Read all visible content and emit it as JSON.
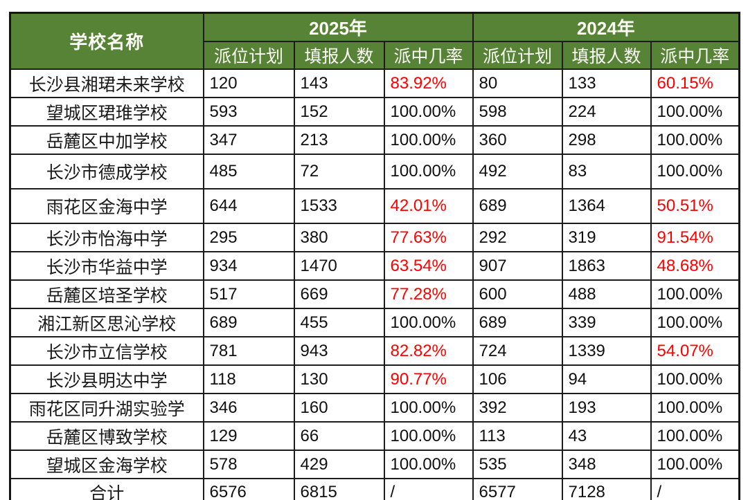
{
  "colors": {
    "header_green": "#578336",
    "rate_red": "#fe0000",
    "grid_line": "#1c1c1c",
    "body_text": "#101010"
  },
  "chart_data": {
    "type": "table",
    "header": {
      "school_column": "学校名称",
      "year_groups": [
        "2025年",
        "2024年"
      ],
      "sub_columns": [
        "派位计划",
        "填报人数",
        "派中几率"
      ]
    },
    "rows": [
      {
        "school": "长沙县湘珺未来学校",
        "y2025": {
          "plan": "120",
          "applicants": "143",
          "rate": "83.92%"
        },
        "y2024": {
          "plan": "80",
          "applicants": "133",
          "rate": "60.15%"
        }
      },
      {
        "school": "望城区珺琟学校",
        "y2025": {
          "plan": "593",
          "applicants": "152",
          "rate": "100.00%"
        },
        "y2024": {
          "plan": "598",
          "applicants": "224",
          "rate": "100.00%"
        }
      },
      {
        "school": "岳麓区中加学校",
        "y2025": {
          "plan": "347",
          "applicants": "213",
          "rate": "100.00%"
        },
        "y2024": {
          "plan": "360",
          "applicants": "298",
          "rate": "100.00%"
        }
      },
      {
        "school": "长沙市德成学校",
        "y2025": {
          "plan": "485",
          "applicants": "72",
          "rate": "100.00%"
        },
        "y2024": {
          "plan": "492",
          "applicants": "83",
          "rate": "100.00%"
        }
      },
      {
        "school": "雨花区金海中学",
        "y2025": {
          "plan": "644",
          "applicants": "1533",
          "rate": "42.01%"
        },
        "y2024": {
          "plan": "689",
          "applicants": "1364",
          "rate": "50.51%"
        }
      },
      {
        "school": "长沙市怡海中学",
        "y2025": {
          "plan": "295",
          "applicants": "380",
          "rate": "77.63%"
        },
        "y2024": {
          "plan": "292",
          "applicants": "319",
          "rate": "91.54%"
        }
      },
      {
        "school": "长沙市华益中学",
        "y2025": {
          "plan": "934",
          "applicants": "1470",
          "rate": "63.54%"
        },
        "y2024": {
          "plan": "907",
          "applicants": "1863",
          "rate": "48.68%"
        }
      },
      {
        "school": "岳麓区培圣学校",
        "y2025": {
          "plan": "517",
          "applicants": "669",
          "rate": "77.28%"
        },
        "y2024": {
          "plan": "600",
          "applicants": "488",
          "rate": "100.00%"
        }
      },
      {
        "school": "湘江新区思沁学校",
        "y2025": {
          "plan": "689",
          "applicants": "455",
          "rate": "100.00%"
        },
        "y2024": {
          "plan": "689",
          "applicants": "339",
          "rate": "100.00%"
        }
      },
      {
        "school": "长沙市立信学校",
        "y2025": {
          "plan": "781",
          "applicants": "943",
          "rate": "82.82%"
        },
        "y2024": {
          "plan": "724",
          "applicants": "1339",
          "rate": "54.07%"
        }
      },
      {
        "school": "长沙县明达中学",
        "y2025": {
          "plan": "118",
          "applicants": "130",
          "rate": "90.77%"
        },
        "y2024": {
          "plan": "106",
          "applicants": "94",
          "rate": "100.00%"
        }
      },
      {
        "school": "雨花区同升湖实验学",
        "y2025": {
          "plan": "346",
          "applicants": "160",
          "rate": "100.00%"
        },
        "y2024": {
          "plan": "392",
          "applicants": "193",
          "rate": "100.00%"
        }
      },
      {
        "school": "岳麓区博致学校",
        "y2025": {
          "plan": "129",
          "applicants": "66",
          "rate": "100.00%"
        },
        "y2024": {
          "plan": "113",
          "applicants": "43",
          "rate": "100.00%"
        }
      },
      {
        "school": "望城区金海学校",
        "y2025": {
          "plan": "578",
          "applicants": "429",
          "rate": "100.00%"
        },
        "y2024": {
          "plan": "535",
          "applicants": "348",
          "rate": "100.00%"
        }
      }
    ],
    "total": {
      "school": "合计",
      "y2025": {
        "plan": "6576",
        "applicants": "6815",
        "rate": "/"
      },
      "y2024": {
        "plan": "6577",
        "applicants": "7128",
        "rate": "/"
      }
    }
  }
}
